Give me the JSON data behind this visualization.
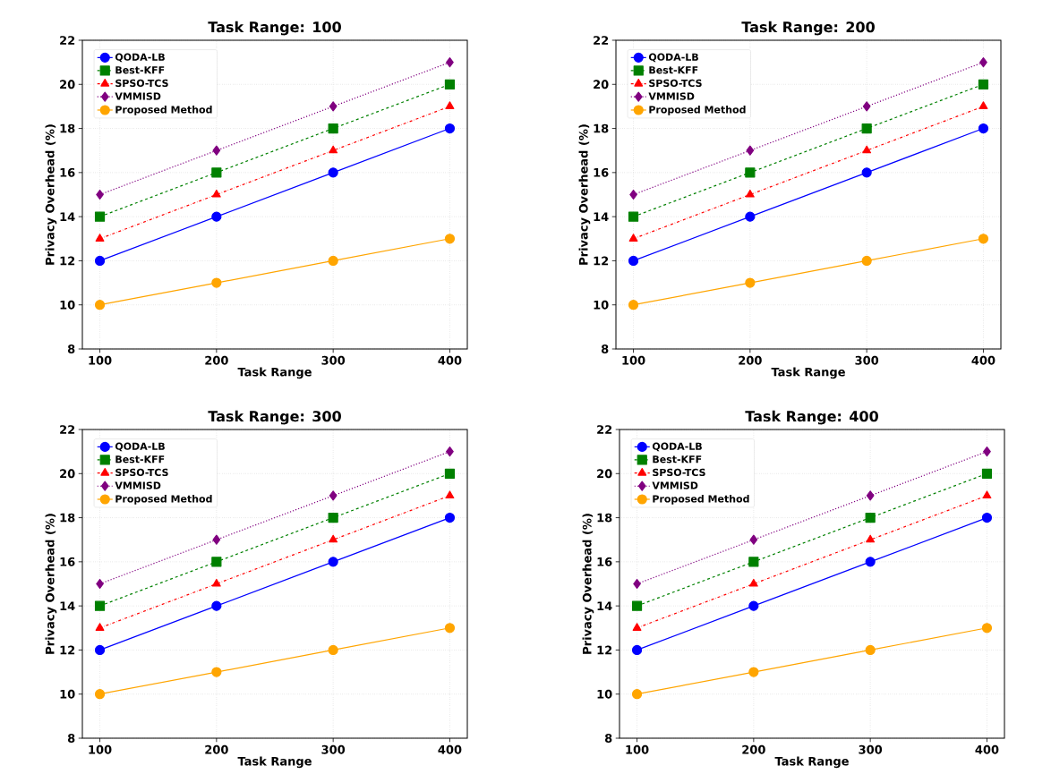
{
  "chart_data": [
    {
      "type": "line",
      "title": "Task Range: 100",
      "xlabel": "Task Range",
      "ylabel": "Privacy Overhead (%)",
      "x": [
        100,
        200,
        300,
        400
      ],
      "xlim": [
        85,
        415
      ],
      "ylim": [
        8,
        22
      ],
      "xticks": [
        100,
        200,
        300,
        400
      ],
      "yticks": [
        8,
        10,
        12,
        14,
        16,
        18,
        20,
        22
      ],
      "grid": true,
      "legend": "top left",
      "series": [
        {
          "name": "QODA-LB",
          "color": "#0000ff",
          "values": [
            12,
            14,
            16,
            18
          ],
          "marker": "circle",
          "line_style": "solid"
        },
        {
          "name": "Best-KFF",
          "color": "#008000",
          "values": [
            14,
            16,
            18,
            20
          ],
          "marker": "square",
          "line_style": "dashed"
        },
        {
          "name": "SPSO-TCS",
          "color": "#ff0000",
          "values": [
            13,
            15,
            17,
            19
          ],
          "marker": "triangle",
          "line_style": "dashdot"
        },
        {
          "name": "VMMISD",
          "color": "#800080",
          "values": [
            15,
            17,
            19,
            21
          ],
          "marker": "diamond",
          "line_style": "dotted"
        },
        {
          "name": "Proposed Method",
          "color": "#ffa500",
          "values": [
            10,
            11,
            12,
            13
          ],
          "marker": "circle",
          "line_style": "solid"
        }
      ]
    },
    {
      "type": "line",
      "title": "Task Range: 200",
      "xlabel": "Task Range",
      "ylabel": "Privacy Overhead (%)",
      "x": [
        100,
        200,
        300,
        400
      ],
      "xlim": [
        85,
        415
      ],
      "ylim": [
        8,
        22
      ],
      "xticks": [
        100,
        200,
        300,
        400
      ],
      "yticks": [
        8,
        10,
        12,
        14,
        16,
        18,
        20,
        22
      ],
      "grid": true,
      "legend": "top left",
      "series": [
        {
          "name": "QODA-LB",
          "color": "#0000ff",
          "values": [
            12,
            14,
            16,
            18
          ],
          "marker": "circle",
          "line_style": "solid"
        },
        {
          "name": "Best-KFF",
          "color": "#008000",
          "values": [
            14,
            16,
            18,
            20
          ],
          "marker": "square",
          "line_style": "dashed"
        },
        {
          "name": "SPSO-TCS",
          "color": "#ff0000",
          "values": [
            13,
            15,
            17,
            19
          ],
          "marker": "triangle",
          "line_style": "dashdot"
        },
        {
          "name": "VMMISD",
          "color": "#800080",
          "values": [
            15,
            17,
            19,
            21
          ],
          "marker": "diamond",
          "line_style": "dotted"
        },
        {
          "name": "Proposed Method",
          "color": "#ffa500",
          "values": [
            10,
            11,
            12,
            13
          ],
          "marker": "circle",
          "line_style": "solid"
        }
      ]
    },
    {
      "type": "line",
      "title": "Task Range: 300",
      "xlabel": "Task Range",
      "ylabel": "Privacy Overhead (%)",
      "x": [
        100,
        200,
        300,
        400
      ],
      "xlim": [
        85,
        415
      ],
      "ylim": [
        8,
        22
      ],
      "xticks": [
        100,
        200,
        300,
        400
      ],
      "yticks": [
        8,
        10,
        12,
        14,
        16,
        18,
        20,
        22
      ],
      "grid": true,
      "legend": "top left",
      "series": [
        {
          "name": "QODA-LB",
          "color": "#0000ff",
          "values": [
            12,
            14,
            16,
            18
          ],
          "marker": "circle",
          "line_style": "solid"
        },
        {
          "name": "Best-KFF",
          "color": "#008000",
          "values": [
            14,
            16,
            18,
            20
          ],
          "marker": "square",
          "line_style": "dashed"
        },
        {
          "name": "SPSO-TCS",
          "color": "#ff0000",
          "values": [
            13,
            15,
            17,
            19
          ],
          "marker": "triangle",
          "line_style": "dashdot"
        },
        {
          "name": "VMMISD",
          "color": "#800080",
          "values": [
            15,
            17,
            19,
            21
          ],
          "marker": "diamond",
          "line_style": "dotted"
        },
        {
          "name": "Proposed Method",
          "color": "#ffa500",
          "values": [
            10,
            11,
            12,
            13
          ],
          "marker": "circle",
          "line_style": "solid"
        }
      ]
    },
    {
      "type": "line",
      "title": "Task Range: 400",
      "xlabel": "Task Range",
      "ylabel": "Privacy Overhead (%)",
      "x": [
        100,
        200,
        300,
        400
      ],
      "xlim": [
        85,
        415
      ],
      "ylim": [
        8,
        22
      ],
      "xticks": [
        100,
        200,
        300,
        400
      ],
      "yticks": [
        8,
        10,
        12,
        14,
        16,
        18,
        20,
        22
      ],
      "grid": true,
      "legend": "top left",
      "series": [
        {
          "name": "QODA-LB",
          "color": "#0000ff",
          "values": [
            12,
            14,
            16,
            18
          ],
          "marker": "circle",
          "line_style": "solid"
        },
        {
          "name": "Best-KFF",
          "color": "#008000",
          "values": [
            14,
            16,
            18,
            20
          ],
          "marker": "square",
          "line_style": "dashed"
        },
        {
          "name": "SPSO-TCS",
          "color": "#ff0000",
          "values": [
            13,
            15,
            17,
            19
          ],
          "marker": "triangle",
          "line_style": "dashdot"
        },
        {
          "name": "VMMISD",
          "color": "#800080",
          "values": [
            15,
            17,
            19,
            21
          ],
          "marker": "diamond",
          "line_style": "dotted"
        },
        {
          "name": "Proposed Method",
          "color": "#ffa500",
          "values": [
            10,
            11,
            12,
            13
          ],
          "marker": "circle",
          "line_style": "solid"
        }
      ]
    }
  ]
}
